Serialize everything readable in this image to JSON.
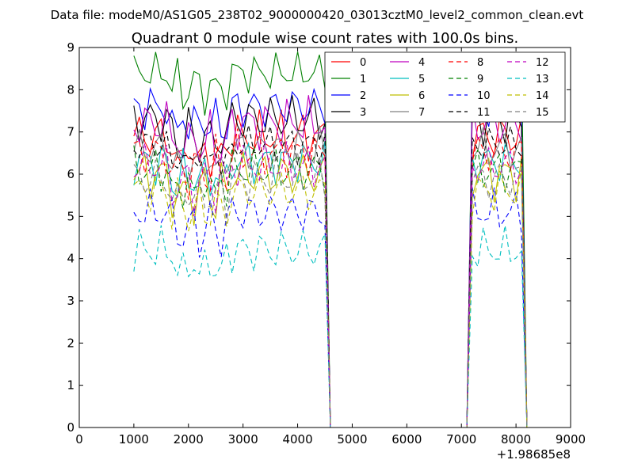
{
  "figure": {
    "suptitle": "Data file: modeM0/AS1G05_238T02_9000000420_03013cztM0_level2_common_clean.evt",
    "title": "Quadrant 0 module wise count rates with 100.0s bins.",
    "x_offset_label": "+1.98685e8"
  },
  "chart_data": {
    "type": "line",
    "title": "Quadrant 0 module wise count rates with 100.0s bins.",
    "xlabel": "",
    "ylabel": "",
    "x_offset": 198685000,
    "xlim": [
      0,
      9000
    ],
    "ylim": [
      0,
      9
    ],
    "xticks": [
      0,
      1000,
      2000,
      3000,
      4000,
      5000,
      6000,
      7000,
      8000,
      9000
    ],
    "yticks": [
      0,
      1,
      2,
      3,
      4,
      5,
      6,
      7,
      8,
      9
    ],
    "xtick_labels": [
      "0",
      "1000",
      "2000",
      "3000",
      "4000",
      "5000",
      "6000",
      "7000",
      "8000",
      "9000"
    ],
    "ytick_labels": [
      "0",
      "1",
      "2",
      "3",
      "4",
      "5",
      "6",
      "7",
      "8",
      "9"
    ],
    "grid": false,
    "legend": {
      "placement": "top-right",
      "columns": 4
    },
    "x": [
      1000,
      1100,
      1200,
      1300,
      1400,
      1500,
      1600,
      1700,
      1800,
      1900,
      2000,
      2100,
      2200,
      2300,
      2400,
      2500,
      2600,
      2700,
      2800,
      2900,
      3000,
      3100,
      3200,
      3300,
      3400,
      3500,
      3600,
      3700,
      3800,
      3900,
      4000,
      4100,
      4200,
      4300,
      4400,
      4500,
      4600,
      4700,
      4800,
      4900,
      5000,
      5100,
      5200,
      5300,
      5400,
      5500,
      5600,
      5700,
      5800,
      5900,
      6000,
      6100,
      6200,
      6300,
      6400,
      6500,
      6600,
      6700,
      6800,
      6900,
      7000,
      7100,
      7200,
      7300,
      7400,
      7500,
      7600,
      7700,
      7800,
      7900,
      8000,
      8100,
      8200
    ],
    "active_segments": [
      [
        1000,
        4500
      ],
      [
        7200,
        8100
      ]
    ],
    "series": [
      {
        "name": "0",
        "color": "#ff0000",
        "dash": "solid",
        "base": 6.9,
        "amp": 0.45
      },
      {
        "name": "1",
        "color": "#008000",
        "dash": "solid",
        "base": 8.4,
        "amp": 0.35
      },
      {
        "name": "2",
        "color": "#0000ff",
        "dash": "solid",
        "base": 7.6,
        "amp": 0.4
      },
      {
        "name": "3",
        "color": "#000000",
        "dash": "solid",
        "base": 7.3,
        "amp": 0.45
      },
      {
        "name": "4",
        "color": "#bf00bf",
        "dash": "solid",
        "base": 7.2,
        "amp": 0.45
      },
      {
        "name": "5",
        "color": "#00bfbf",
        "dash": "solid",
        "base": 6.3,
        "amp": 0.4
      },
      {
        "name": "6",
        "color": "#bfbf00",
        "dash": "solid",
        "base": 6.0,
        "amp": 0.45
      },
      {
        "name": "7",
        "color": "#808080",
        "dash": "solid",
        "base": 6.6,
        "amp": 0.4
      },
      {
        "name": "8",
        "color": "#ff0000",
        "dash": "dashed",
        "base": 6.5,
        "amp": 0.4
      },
      {
        "name": "9",
        "color": "#008000",
        "dash": "dashed",
        "base": 6.1,
        "amp": 0.4
      },
      {
        "name": "10",
        "color": "#0000ff",
        "dash": "dashed",
        "base": 5.1,
        "amp": 0.4
      },
      {
        "name": "11",
        "color": "#000000",
        "dash": "dashed",
        "base": 6.7,
        "amp": 0.35
      },
      {
        "name": "12",
        "color": "#bf00bf",
        "dash": "dashed",
        "base": 6.2,
        "amp": 0.4
      },
      {
        "name": "13",
        "color": "#00bfbf",
        "dash": "dashed",
        "base": 4.2,
        "amp": 0.4
      },
      {
        "name": "14",
        "color": "#bfbf00",
        "dash": "dashed",
        "base": 5.6,
        "amp": 0.4
      },
      {
        "name": "15",
        "color": "#808080",
        "dash": "dashed",
        "base": 5.9,
        "amp": 0.4
      }
    ]
  }
}
